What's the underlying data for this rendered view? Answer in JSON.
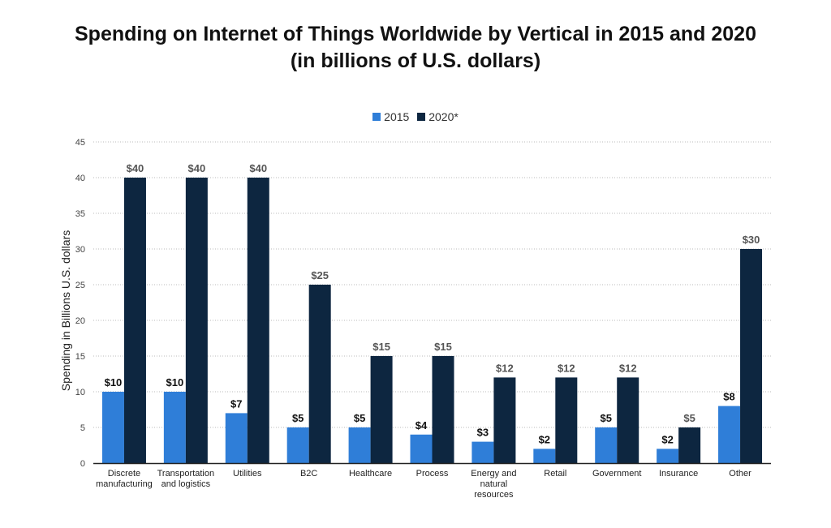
{
  "chart_data": {
    "type": "bar",
    "title_lines": [
      "Spending on Internet of Things Worldwide by Vertical in 2015 and 2020",
      "(in billions of U.S. dollars)"
    ],
    "ylabel": "Spending in Billions U.S. dollars",
    "xlabel": "",
    "ylim": [
      0,
      45
    ],
    "yticks": [
      0,
      5,
      10,
      15,
      20,
      25,
      30,
      35,
      40,
      45
    ],
    "grid": true,
    "legend_position": "top-center",
    "categories": [
      [
        "Discrete",
        "manufacturing"
      ],
      [
        "Transportation",
        "and logistics"
      ],
      [
        "Utilities"
      ],
      [
        "B2C"
      ],
      [
        "Healthcare"
      ],
      [
        "Process"
      ],
      [
        "Energy and",
        "natural",
        "resources"
      ],
      [
        "Retail"
      ],
      [
        "Government"
      ],
      [
        "Insurance"
      ],
      [
        "Other"
      ]
    ],
    "series": [
      {
        "name": "2015",
        "color": "#2f7ed8",
        "values": [
          10,
          10,
          7,
          5,
          5,
          4,
          3,
          2,
          5,
          2,
          8
        ],
        "labels": [
          "$10",
          "$10",
          "$7",
          "$5",
          "$5",
          "$4",
          "$3",
          "$2",
          "$5",
          "$2",
          "$8"
        ]
      },
      {
        "name": "2020*",
        "color": "#0d2640",
        "values": [
          40,
          40,
          40,
          25,
          15,
          15,
          12,
          12,
          12,
          5,
          30
        ],
        "labels": [
          "$40",
          "$40",
          "$40",
          "$25",
          "$15",
          "$15",
          "$12",
          "$12",
          "$12",
          "$5",
          "$30"
        ]
      }
    ]
  },
  "colors": {
    "series_2015": "#2f7ed8",
    "series_2020": "#0d2640",
    "label_2015": "#111111",
    "label_2020": "#555555",
    "grid": "#bbbbbb",
    "axis": "#222222"
  }
}
